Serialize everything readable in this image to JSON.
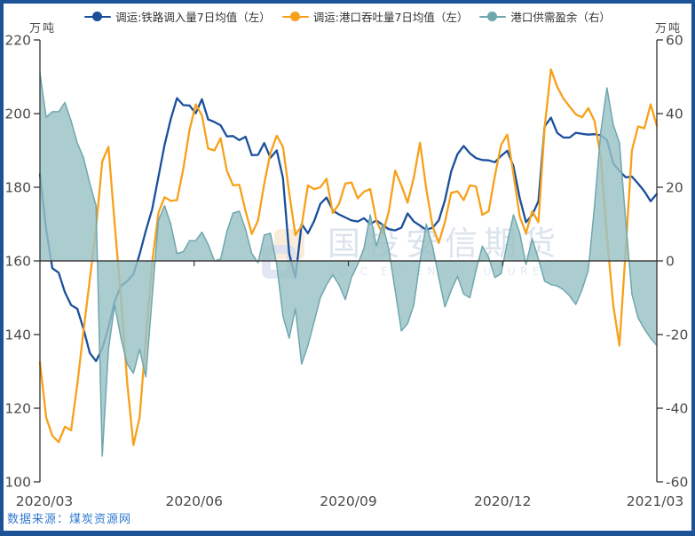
{
  "units": {
    "left": "万吨",
    "right": "万吨"
  },
  "watermark": {
    "cn": "国投安信期货",
    "en": "SDIC ESSENCE FUTURES"
  },
  "footer": {
    "source_label": "数据来源：煤炭资源网"
  },
  "colors": {
    "railway_line": "#1a4f9c",
    "port_line": "#f7a11a",
    "surplus_fill": "#9ac2c6",
    "surplus_stroke": "#6fa7ad",
    "frame_border": "#1d5296",
    "axis": "#333333",
    "tick_label": "#4a4a4a",
    "source_text": "#2e79d0"
  },
  "chart_data": {
    "type": "line",
    "title": "",
    "x_range": [
      "2020/03",
      "2021/03"
    ],
    "x_ticks": [
      "2020/03",
      "2020/06",
      "2020/09",
      "2020/12",
      "2021/03"
    ],
    "y_left": {
      "unit": "万吨",
      "min": 100,
      "max": 220,
      "ticks": [
        220,
        200,
        180,
        160,
        140,
        120,
        100
      ]
    },
    "y_right": {
      "unit": "万吨",
      "min": -60,
      "max": 60,
      "ticks": [
        60,
        40,
        20,
        0,
        -20,
        -40,
        -60
      ]
    },
    "alignment_note": "left value 160 aligns with right value 0 (zero line)",
    "sampling": "values evenly spaced in time across x_range, 100 points per series",
    "legend_position": "top-center",
    "series": [
      {
        "name": "调运:铁路调入量7日均值（左）",
        "axis": "left",
        "style": "line",
        "color": "#1a4f9c",
        "values": [
          183.5,
          168.5,
          158,
          156.8,
          151.5,
          148,
          147,
          141.5,
          135,
          132.8,
          136.2,
          142,
          149,
          153.2,
          154.5,
          156.4,
          161.8,
          168.2,
          174,
          182.7,
          191.5,
          198.5,
          204.2,
          202.3,
          202.2,
          200.1,
          203.9,
          198.4,
          197.7,
          196.8,
          193.8,
          193.9,
          192.8,
          193.7,
          188.7,
          188.8,
          192,
          188,
          190,
          182.5,
          162,
          155.5,
          170,
          167.5,
          170.8,
          175.5,
          177.2,
          173.7,
          172.6,
          171.8,
          171,
          170.7,
          171.6,
          170,
          171,
          169.8,
          168.6,
          168.3,
          169,
          172.9,
          170.7,
          169.6,
          168.4,
          169,
          171,
          176.5,
          184.3,
          189,
          191.2,
          189.2,
          187.9,
          187.4,
          187.3,
          186.8,
          188.5,
          189.9,
          185.7,
          177,
          170.5,
          172.5,
          176.2,
          196.5,
          198.9,
          194.8,
          193.5,
          193.5,
          194.8,
          194.5,
          194.3,
          194.4,
          194.1,
          192.8,
          186.5,
          184.4,
          182.7,
          182.9,
          181,
          178.9,
          176.2,
          178.2
        ]
      },
      {
        "name": "调运:港口吞吐量7日均值（左）",
        "axis": "left",
        "style": "line",
        "color": "#f7a11a",
        "values": [
          132.5,
          117.5,
          112.5,
          110.8,
          115,
          114,
          126.5,
          141,
          155,
          169,
          187,
          191,
          170,
          150,
          127,
          110,
          117.5,
          139,
          159.5,
          173,
          177.3,
          176.3,
          176.5,
          185,
          195.5,
          202.5,
          199.5,
          190.5,
          190,
          193.3,
          184.5,
          180.5,
          180.7,
          173.5,
          167.3,
          171,
          181,
          189.3,
          194,
          191,
          178.5,
          167,
          169.5,
          180.5,
          179.5,
          180,
          182.3,
          173,
          175.5,
          181,
          181.3,
          177,
          178.8,
          179.5,
          170.8,
          167.3,
          173.5,
          184.5,
          180.5,
          175.8,
          182.6,
          192.1,
          179.5,
          169.5,
          164.9,
          170.6,
          178.5,
          178.9,
          176.5,
          180.5,
          180.2,
          172.5,
          173.5,
          183,
          191.5,
          194.3,
          183.5,
          172,
          167.5,
          173.5,
          170.5,
          196.3,
          212,
          207.3,
          204.1,
          201.9,
          199.8,
          199,
          201.5,
          198,
          188.3,
          166.5,
          148,
          137,
          163,
          190,
          196.5,
          196,
          202.5,
          196.7
        ]
      },
      {
        "name": "港口供需盈余（右）",
        "axis": "right",
        "style": "area",
        "color": "#9ac2c6",
        "values": [
          51,
          39,
          40.5,
          40.5,
          43,
          38,
          32,
          28,
          21,
          15,
          -53,
          -24,
          -12,
          -21,
          -28,
          -30.5,
          -24,
          -31.5,
          -10,
          11,
          15,
          10,
          2,
          2.5,
          5.5,
          5.5,
          7.8,
          4.5,
          0,
          0.5,
          8,
          13,
          13.5,
          8.5,
          2,
          -0.5,
          7,
          7.5,
          -1,
          -15,
          -21,
          -13,
          -28,
          -23,
          -16.5,
          -10,
          -6.5,
          -3.8,
          -6.5,
          -10.5,
          -4.5,
          -1,
          3.5,
          12.5,
          4,
          10,
          3,
          -8,
          -19,
          -17,
          -12,
          0,
          10,
          4,
          -4.5,
          -12.5,
          -8,
          -4.2,
          -9,
          -10,
          -2.5,
          4,
          1,
          -4.5,
          -3.5,
          5,
          12.5,
          7.5,
          -1,
          6,
          0.5,
          -5.5,
          -6.4,
          -6.8,
          -7.8,
          -9.5,
          -11.8,
          -7.8,
          -2.5,
          15,
          35,
          47,
          37,
          32,
          11,
          -9,
          -15.5,
          -18.5,
          -21,
          -23
        ]
      }
    ]
  }
}
